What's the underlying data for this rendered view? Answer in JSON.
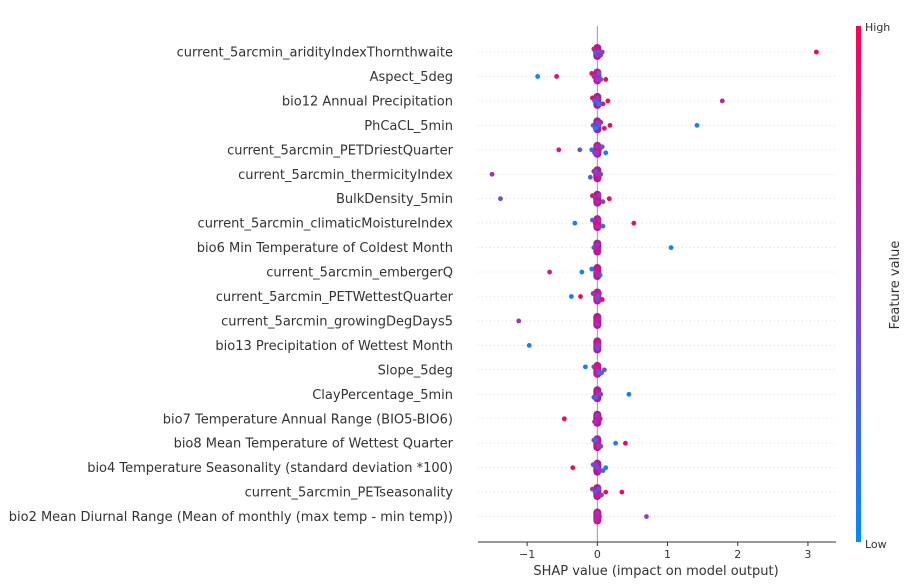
{
  "chart_data": {
    "type": "scatter",
    "subtype": "shap-beeswarm",
    "xlabel": "SHAP value (impact on model output)",
    "xlim": [
      -1.7,
      3.4
    ],
    "xticks": [
      -1,
      0,
      1,
      2,
      3
    ],
    "xtick_labels": [
      "−1",
      "0",
      "1",
      "2",
      "3"
    ],
    "colorbar": {
      "label": "Feature value",
      "high": "High",
      "low": "Low",
      "high_color": "#ff0052",
      "low_color": "#008bfb"
    },
    "features": [
      {
        "name": "current_5arcmin_aridityIndexThornthwaite",
        "points": [
          [
            3.12,
            1.0
          ],
          [
            0.07,
            0.6
          ],
          [
            0.05,
            0.2
          ],
          [
            -0.05,
            0.8
          ],
          [
            -0.03,
            0.1
          ],
          [
            0.0,
            0.5
          ],
          [
            -0.01,
            0.9
          ],
          [
            0.02,
            0.3
          ],
          [
            0.03,
            0.7
          ]
        ]
      },
      {
        "name": "Aspect_5deg",
        "points": [
          [
            -0.85,
            0.0
          ],
          [
            -0.58,
            0.9
          ],
          [
            0.12,
            0.95
          ],
          [
            -0.08,
            0.85
          ],
          [
            -0.05,
            0.6
          ],
          [
            0.05,
            0.4
          ],
          [
            0.02,
            0.2
          ],
          [
            -0.02,
            0.7
          ],
          [
            0.0,
            0.5
          ]
        ]
      },
      {
        "name": "bio12 Annual Precipitation",
        "points": [
          [
            1.78,
            0.7
          ],
          [
            0.15,
            0.95
          ],
          [
            0.08,
            0.8
          ],
          [
            -0.07,
            0.9
          ],
          [
            -0.04,
            0.2
          ],
          [
            0.03,
            0.5
          ],
          [
            0.0,
            0.6
          ],
          [
            -0.01,
            0.3
          ],
          [
            0.02,
            0.1
          ]
        ]
      },
      {
        "name": "PhCaCL_5min",
        "points": [
          [
            1.42,
            0.1
          ],
          [
            0.18,
            0.95
          ],
          [
            0.1,
            0.85
          ],
          [
            0.05,
            0.7
          ],
          [
            -0.06,
            0.4
          ],
          [
            -0.02,
            0.2
          ],
          [
            0.0,
            0.5
          ],
          [
            0.02,
            0.3
          ],
          [
            -0.03,
            0.1
          ]
        ]
      },
      {
        "name": "current_5arcmin_PETDriestQuarter",
        "points": [
          [
            -0.55,
            0.8
          ],
          [
            -0.25,
            0.35
          ],
          [
            0.12,
            0.1
          ],
          [
            0.07,
            0.3
          ],
          [
            -0.08,
            0.2
          ],
          [
            -0.04,
            0.6
          ],
          [
            0.0,
            0.5
          ],
          [
            0.03,
            0.8
          ],
          [
            -0.01,
            0.4
          ]
        ]
      },
      {
        "name": "current_5arcmin_thermicityIndex",
        "points": [
          [
            -1.5,
            0.6
          ],
          [
            0.05,
            0.2
          ],
          [
            -0.1,
            0.3
          ],
          [
            -0.05,
            0.8
          ],
          [
            0.0,
            0.5
          ],
          [
            0.02,
            0.9
          ],
          [
            -0.02,
            0.4
          ],
          [
            0.03,
            0.6
          ]
        ]
      },
      {
        "name": "BulkDensity_5min",
        "points": [
          [
            -1.38,
            0.4
          ],
          [
            0.17,
            0.95
          ],
          [
            0.08,
            0.4
          ],
          [
            -0.07,
            0.85
          ],
          [
            -0.03,
            0.2
          ],
          [
            0.0,
            0.6
          ],
          [
            0.02,
            0.5
          ],
          [
            -0.01,
            0.9
          ]
        ]
      },
      {
        "name": "current_5arcmin_climaticMoistureIndex",
        "points": [
          [
            0.52,
            0.9
          ],
          [
            -0.32,
            0.1
          ],
          [
            0.08,
            0.2
          ],
          [
            -0.07,
            0.4
          ],
          [
            -0.03,
            0.8
          ],
          [
            0.0,
            0.5
          ],
          [
            0.02,
            0.6
          ],
          [
            -0.01,
            0.9
          ]
        ]
      },
      {
        "name": "bio6 Min Temperature of Coldest Month",
        "points": [
          [
            1.05,
            0.05
          ],
          [
            -0.05,
            0.2
          ],
          [
            0.02,
            0.1
          ],
          [
            0.0,
            0.5
          ],
          [
            -0.02,
            0.7
          ],
          [
            0.01,
            0.9
          ]
        ]
      },
      {
        "name": "current_5arcmin_embergerQ",
        "points": [
          [
            -0.68,
            0.8
          ],
          [
            -0.22,
            0.1
          ],
          [
            0.04,
            0.05
          ],
          [
            -0.08,
            0.2
          ],
          [
            -0.02,
            0.5
          ],
          [
            0.0,
            0.7
          ],
          [
            0.01,
            0.9
          ]
        ]
      },
      {
        "name": "current_5arcmin_PETWettestQuarter",
        "points": [
          [
            -0.37,
            0.1
          ],
          [
            -0.24,
            0.95
          ],
          [
            0.07,
            0.9
          ],
          [
            -0.06,
            0.6
          ],
          [
            -0.02,
            0.8
          ],
          [
            0.0,
            0.5
          ],
          [
            0.03,
            0.7
          ],
          [
            0.01,
            0.3
          ]
        ]
      },
      {
        "name": "current_5arcmin_growingDegDays5",
        "points": [
          [
            -1.12,
            0.6
          ],
          [
            -0.02,
            0.9
          ],
          [
            0.0,
            0.5
          ],
          [
            0.02,
            0.8
          ],
          [
            -0.01,
            0.7
          ]
        ]
      },
      {
        "name": "bio13 Precipitation of Wettest Month",
        "points": [
          [
            -0.97,
            0.05
          ],
          [
            -0.02,
            0.6
          ],
          [
            0.0,
            0.4
          ],
          [
            0.01,
            0.8
          ],
          [
            0.02,
            0.5
          ]
        ]
      },
      {
        "name": "Slope_5deg",
        "points": [
          [
            -0.17,
            0.1
          ],
          [
            0.1,
            0.4
          ],
          [
            0.06,
            0.3
          ],
          [
            -0.05,
            0.5
          ],
          [
            0.0,
            0.6
          ],
          [
            0.02,
            0.2
          ],
          [
            -0.01,
            0.9
          ]
        ]
      },
      {
        "name": "ClayPercentage_5min",
        "points": [
          [
            0.45,
            0.05
          ],
          [
            0.05,
            0.3
          ],
          [
            -0.05,
            0.4
          ],
          [
            0.0,
            0.8
          ],
          [
            0.02,
            0.6
          ],
          [
            -0.02,
            0.2
          ]
        ]
      },
      {
        "name": "bio7 Temperature Annual Range (BIO5-BIO6)",
        "points": [
          [
            -0.47,
            0.95
          ],
          [
            0.04,
            0.9
          ],
          [
            -0.04,
            0.7
          ],
          [
            0.0,
            0.5
          ],
          [
            0.02,
            0.8
          ],
          [
            -0.02,
            0.6
          ]
        ]
      },
      {
        "name": "bio8 Mean Temperature of Wettest Quarter",
        "points": [
          [
            0.4,
            0.95
          ],
          [
            0.26,
            0.1
          ],
          [
            0.05,
            0.3
          ],
          [
            -0.05,
            0.5
          ],
          [
            0.0,
            0.8
          ],
          [
            0.02,
            0.6
          ],
          [
            -0.02,
            0.2
          ]
        ]
      },
      {
        "name": "bio4 Temperature Seasonality (standard deviation *100)",
        "points": [
          [
            -0.35,
            0.95
          ],
          [
            0.12,
            0.05
          ],
          [
            0.08,
            0.2
          ],
          [
            -0.06,
            0.4
          ],
          [
            0.0,
            0.3
          ],
          [
            0.03,
            0.6
          ],
          [
            -0.02,
            0.5
          ]
        ]
      },
      {
        "name": "current_5arcmin_PETseasonality",
        "points": [
          [
            0.35,
            0.95
          ],
          [
            0.12,
            0.9
          ],
          [
            0.06,
            0.5
          ],
          [
            -0.07,
            0.6
          ],
          [
            -0.03,
            0.3
          ],
          [
            0.0,
            0.8
          ],
          [
            0.02,
            0.4
          ]
        ]
      },
      {
        "name": "bio2 Mean Diurnal Range (Mean of monthly (max temp - min temp))",
        "points": [
          [
            0.7,
            0.5
          ],
          [
            0.03,
            0.9
          ],
          [
            -0.02,
            0.6
          ],
          [
            0.0,
            0.5
          ],
          [
            0.01,
            0.7
          ]
        ]
      }
    ]
  }
}
